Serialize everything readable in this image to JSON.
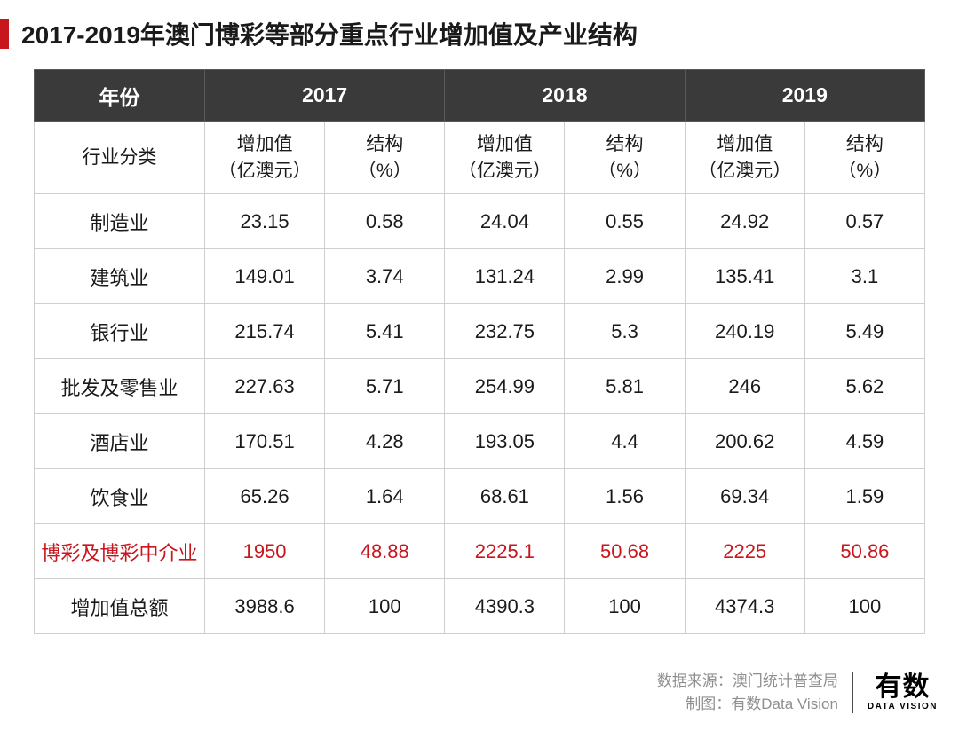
{
  "title": "2017-2019年澳门博彩等部分重点行业增加值及产业结构",
  "colors": {
    "accent": "#c8161d",
    "header_bg": "#3a3a3a",
    "header_text": "#ffffff",
    "border": "#cfcfcf",
    "highlight": "#c8161d",
    "footer_text": "#8f8f8f"
  },
  "table": {
    "header_row1": {
      "year_label": "年份",
      "years": [
        "2017",
        "2018",
        "2019"
      ]
    },
    "header_row2": {
      "category_label": "行业分类",
      "subcols": [
        {
          "v": "增加值\n（亿澳元）",
          "s": "结构\n（%）"
        },
        {
          "v": "增加值\n（亿澳元）",
          "s": "结构\n（%）"
        },
        {
          "v": "增加值\n（亿澳元）",
          "s": "结构\n（%）"
        }
      ]
    },
    "rows": [
      {
        "cat": "制造业",
        "v17": "23.15",
        "s17": "0.58",
        "v18": "24.04",
        "s18": "0.55",
        "v19": "24.92",
        "s19": "0.57",
        "hl": false
      },
      {
        "cat": "建筑业",
        "v17": "149.01",
        "s17": "3.74",
        "v18": "131.24",
        "s18": "2.99",
        "v19": "135.41",
        "s19": "3.1",
        "hl": false
      },
      {
        "cat": "银行业",
        "v17": "215.74",
        "s17": "5.41",
        "v18": "232.75",
        "s18": "5.3",
        "v19": "240.19",
        "s19": "5.49",
        "hl": false
      },
      {
        "cat": "批发及零售业",
        "v17": "227.63",
        "s17": "5.71",
        "v18": "254.99",
        "s18": "5.81",
        "v19": "246",
        "s19": "5.62",
        "hl": false
      },
      {
        "cat": "酒店业",
        "v17": "170.51",
        "s17": "4.28",
        "v18": "193.05",
        "s18": "4.4",
        "v19": "200.62",
        "s19": "4.59",
        "hl": false
      },
      {
        "cat": "饮食业",
        "v17": "65.26",
        "s17": "1.64",
        "v18": "68.61",
        "s18": "1.56",
        "v19": "69.34",
        "s19": "1.59",
        "hl": false
      },
      {
        "cat": "博彩及博彩中介业",
        "v17": "1950",
        "s17": "48.88",
        "v18": "2225.1",
        "s18": "50.68",
        "v19": "2225",
        "s19": "50.86",
        "hl": true
      },
      {
        "cat": "增加值总额",
        "v17": "3988.6",
        "s17": "100",
        "v18": "4390.3",
        "s18": "100",
        "v19": "4374.3",
        "s19": "100",
        "hl": false
      }
    ]
  },
  "footer": {
    "source_label": "数据来源：",
    "source_value": "澳门统计普查局",
    "chart_label": "制图：",
    "chart_value": "有数Data Vision",
    "logo_cn": "有数",
    "logo_en": "DATA VISION"
  }
}
